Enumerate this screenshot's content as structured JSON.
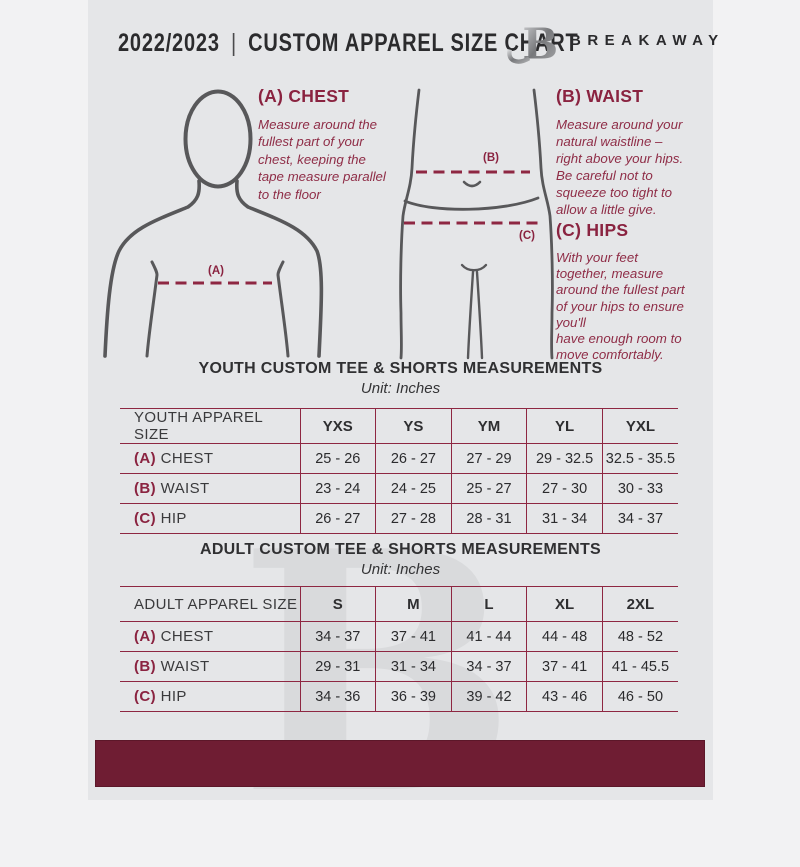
{
  "header": {
    "year": "2022/2023",
    "divider": "|",
    "title": "CUSTOM APPAREL SIZE CHART",
    "brand": "BREAKAWAY"
  },
  "watermark_letter": "B",
  "figures": {
    "labels": {
      "A": "(A)",
      "B": "(B)",
      "C": "(C)"
    }
  },
  "instructions": [
    {
      "title": "(A) CHEST",
      "body": "Measure around the\nfullest part of your\nchest, keeping the\ntape measure parallel\nto the floor"
    },
    {
      "title": "(B) WAIST",
      "body": "Measure around your\nnatural waistline –\nright above your hips.\nBe careful not to\nsqueeze too tight to\nallow a little give."
    },
    {
      "title": "(C) HIPS",
      "body": "With your feet\ntogether, measure\naround the fullest part\nof your hips to ensure\nyou'll\nhave enough room to\nmove comfortably."
    }
  ],
  "tables": [
    {
      "title": "YOUTH CUSTOM TEE & SHORTS MEASUREMENTS",
      "unit": "Unit: Inches",
      "size_label": "YOUTH APPAREL SIZE",
      "columns": [
        "YXS",
        "YS",
        "YM",
        "YL",
        "YXL"
      ],
      "rows": [
        {
          "prefix": "(A)",
          "label": "CHEST",
          "values": [
            "25 - 26",
            "26 - 27",
            "27 - 29",
            "29 - 32.5",
            "32.5 - 35.5"
          ]
        },
        {
          "prefix": "(B)",
          "label": "WAIST",
          "values": [
            "23 - 24",
            "24 - 25",
            "25 - 27",
            "27 - 30",
            "30 - 33"
          ]
        },
        {
          "prefix": "(C)",
          "label": "HIP",
          "values": [
            "26 - 27",
            "27 - 28",
            "28 - 31",
            "31 - 34",
            "34 - 37"
          ]
        }
      ]
    },
    {
      "title": "ADULT CUSTOM TEE & SHORTS MEASUREMENTS",
      "unit": "Unit: Inches",
      "size_label": "ADULT APPAREL SIZE",
      "columns": [
        "S",
        "M",
        "L",
        "XL",
        "2XL"
      ],
      "rows": [
        {
          "prefix": "(A)",
          "label": "CHEST",
          "values": [
            "34 - 37",
            "37 - 41",
            "41 - 44",
            "44 - 48",
            "48 - 52"
          ]
        },
        {
          "prefix": "(B)",
          "label": "WAIST",
          "values": [
            "29 - 31",
            "31 - 34",
            "34 - 37",
            "37 - 41",
            "41 - 45.5"
          ]
        },
        {
          "prefix": "(C)",
          "label": "HIP",
          "values": [
            "34 - 36",
            "36 - 39",
            "39 - 42",
            "43 - 46",
            "46 - 50"
          ]
        }
      ]
    }
  ],
  "colors": {
    "card-bg": "#e5e6e8",
    "outer-bg": "#f2f2f3",
    "maroon-text": "#8a2340",
    "maroon-body": "#8f2d47",
    "maroon-line": "#8e2742",
    "bar": "#6f1d33",
    "dark": "#2b2b2d",
    "gray-text": "#3a3a3c",
    "figure": "#58585a",
    "watermark": "#d9dadc"
  }
}
